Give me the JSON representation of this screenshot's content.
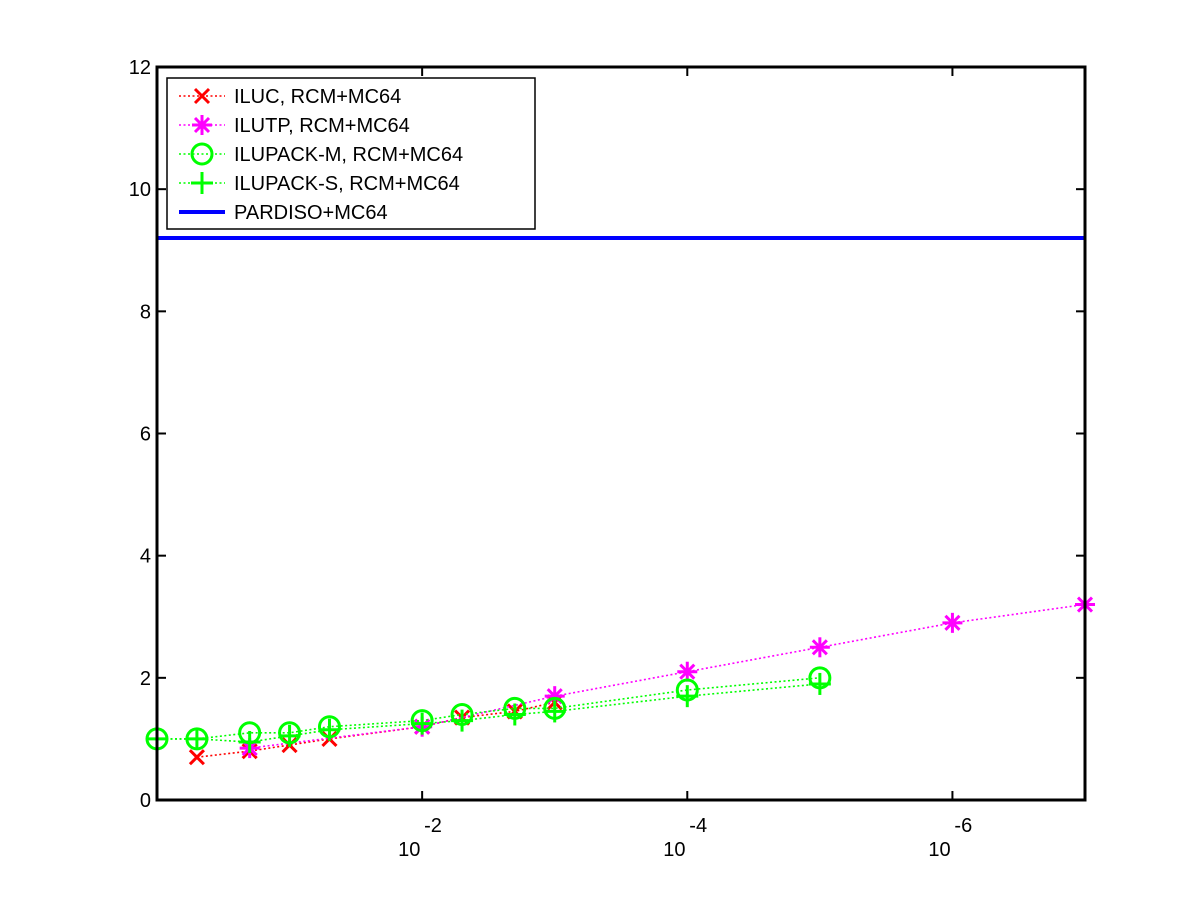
{
  "chart_data": {
    "type": "line",
    "title": "",
    "xlabel": "",
    "ylabel": "",
    "x_scale": "log",
    "x_reversed": true,
    "xlim": [
      1,
      1e-07
    ],
    "ylim": [
      0,
      12
    ],
    "grid": false,
    "legend_position": "top-left",
    "x_ticks": [
      {
        "value": 0.01,
        "base": "10",
        "exp": "-2"
      },
      {
        "value": 0.0001,
        "base": "10",
        "exp": "-4"
      },
      {
        "value": 1e-06,
        "base": "10",
        "exp": "-6"
      }
    ],
    "y_ticks": [
      {
        "value": 0,
        "label": "0"
      },
      {
        "value": 2,
        "label": "2"
      },
      {
        "value": 4,
        "label": "4"
      },
      {
        "value": 6,
        "label": "6"
      },
      {
        "value": 8,
        "label": "8"
      },
      {
        "value": 10,
        "label": "10"
      },
      {
        "value": 12,
        "label": "12"
      }
    ],
    "series": [
      {
        "name": "ILUC, RCM+MC64",
        "color": "#ff0000",
        "marker": "x",
        "line": "dotted",
        "points": [
          [
            0.5,
            0.7
          ],
          [
            0.2,
            0.8
          ],
          [
            0.1,
            0.9
          ],
          [
            0.05,
            1.0
          ],
          [
            0.01,
            1.2
          ],
          [
            0.005,
            1.35
          ],
          [
            0.002,
            1.45
          ],
          [
            0.001,
            1.6
          ]
        ]
      },
      {
        "name": "ILUTP, RCM+MC64",
        "color": "#ff00ff",
        "marker": "asterisk",
        "line": "dotted",
        "points": [
          [
            0.2,
            0.85
          ],
          [
            0.01,
            1.2
          ],
          [
            0.001,
            1.7
          ],
          [
            0.0001,
            2.1
          ],
          [
            1e-05,
            2.5
          ],
          [
            1e-06,
            2.9
          ],
          [
            1e-07,
            3.2
          ]
        ]
      },
      {
        "name": "ILUPACK-M, RCM+MC64",
        "color": "#00ff00",
        "marker": "circle",
        "line": "dotted",
        "points": [
          [
            1,
            1.0
          ],
          [
            0.5,
            1.0
          ],
          [
            0.2,
            1.1
          ],
          [
            0.1,
            1.1
          ],
          [
            0.05,
            1.2
          ],
          [
            0.01,
            1.3
          ],
          [
            0.005,
            1.4
          ],
          [
            0.002,
            1.5
          ],
          [
            0.001,
            1.5
          ],
          [
            0.0001,
            1.8
          ],
          [
            1e-05,
            2.0
          ]
        ]
      },
      {
        "name": "ILUPACK-S, RCM+MC64",
        "color": "#00ff00",
        "marker": "plus",
        "line": "dotted",
        "points": [
          [
            1,
            1.0
          ],
          [
            0.5,
            1.0
          ],
          [
            0.2,
            0.95
          ],
          [
            0.1,
            1.05
          ],
          [
            0.05,
            1.15
          ],
          [
            0.01,
            1.25
          ],
          [
            0.005,
            1.3
          ],
          [
            0.002,
            1.4
          ],
          [
            0.001,
            1.45
          ],
          [
            0.0001,
            1.7
          ],
          [
            1e-05,
            1.9
          ]
        ]
      },
      {
        "name": "PARDISO+MC64",
        "color": "#0000ff",
        "marker": "none",
        "line": "solid",
        "points": [
          [
            1,
            9.2
          ],
          [
            1e-07,
            9.2
          ]
        ]
      }
    ]
  }
}
